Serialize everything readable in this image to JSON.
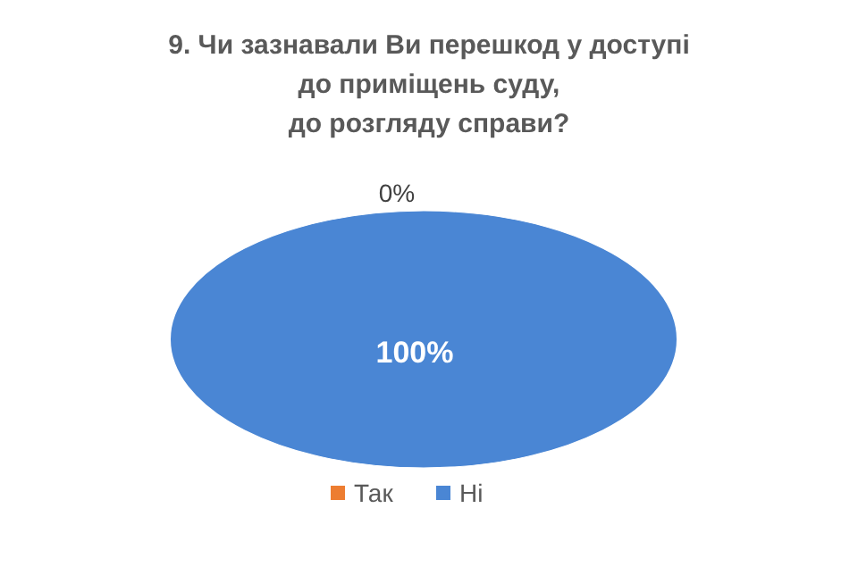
{
  "chart_data": {
    "type": "pie",
    "title": "9. Чи зазнавали Ви перешкод у доступі\nдо приміщень суду,\nдо розгляду справи?",
    "categories": [
      "Так",
      "Ні"
    ],
    "values": [
      0,
      100
    ],
    "colors": [
      "#ed7d31",
      "#4a86d4"
    ],
    "value_labels": [
      "0%",
      "100%"
    ],
    "legend": "bottom"
  }
}
